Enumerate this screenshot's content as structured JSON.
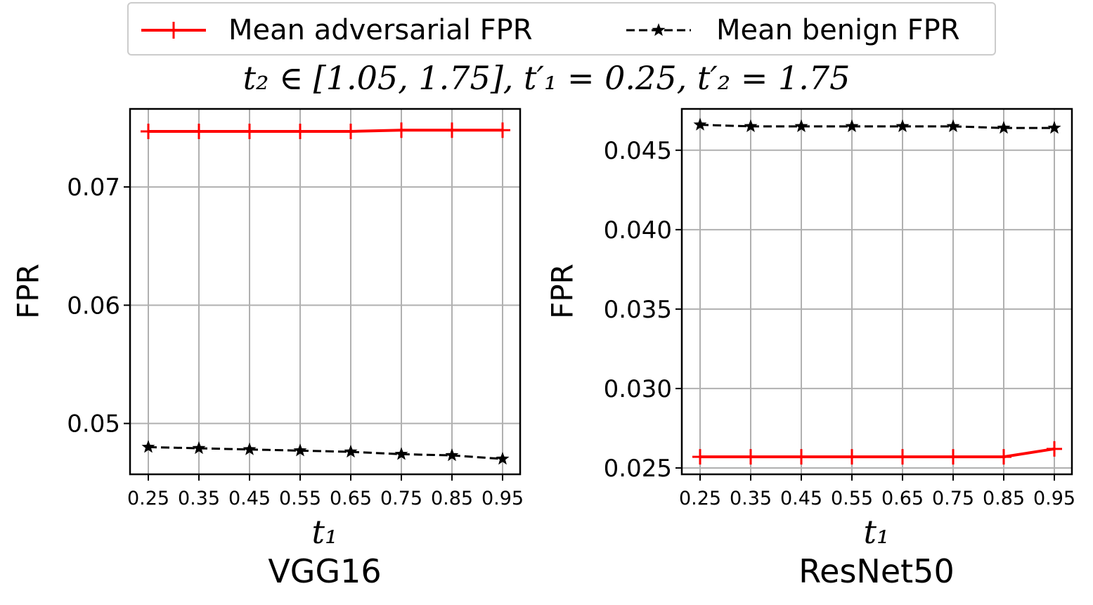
{
  "legend": {
    "series0": "Mean adversarial FPR",
    "series1": "Mean benign FPR"
  },
  "suptitle": "t₂ ∈ [1.05, 1.75], t′₁ = 0.25, t′₂ = 1.75",
  "colors": {
    "adversarial": "#ff0000",
    "benign": "#000000",
    "grid": "#b0b0b0"
  },
  "chart_data": [
    {
      "type": "line",
      "caption": "VGG16",
      "xlabel": "t₁",
      "ylabel": "FPR",
      "x": [
        0.25,
        0.35,
        0.45,
        0.55,
        0.65,
        0.75,
        0.85,
        0.95
      ],
      "x_tick_labels": [
        "0.25",
        "0.35",
        "0.45",
        "0.55",
        "0.65",
        "0.75",
        "0.85",
        "0.95"
      ],
      "y_ticks": [
        0.05,
        0.06,
        0.07
      ],
      "y_tick_labels": [
        "0.05",
        "0.06",
        "0.07"
      ],
      "ylim": [
        0.0457,
        0.0766
      ],
      "grid": true,
      "series": [
        {
          "name": "Mean adversarial FPR",
          "values": [
            0.0747,
            0.0747,
            0.0747,
            0.0747,
            0.0747,
            0.0748,
            0.0748,
            0.0748
          ]
        },
        {
          "name": "Mean benign FPR",
          "values": [
            0.048,
            0.0479,
            0.0478,
            0.0477,
            0.0476,
            0.0474,
            0.0473,
            0.047
          ]
        }
      ]
    },
    {
      "type": "line",
      "caption": "ResNet50",
      "xlabel": "t₁",
      "ylabel": "FPR",
      "x": [
        0.25,
        0.35,
        0.45,
        0.55,
        0.65,
        0.75,
        0.85,
        0.95
      ],
      "x_tick_labels": [
        "0.25",
        "0.35",
        "0.45",
        "0.55",
        "0.65",
        "0.75",
        "0.85",
        "0.95"
      ],
      "y_ticks": [
        0.025,
        0.03,
        0.035,
        0.04,
        0.045
      ],
      "y_tick_labels": [
        "0.025",
        "0.030",
        "0.035",
        "0.040",
        "0.045"
      ],
      "ylim": [
        0.0246,
        0.0476
      ],
      "grid": true,
      "series": [
        {
          "name": "Mean adversarial FPR",
          "values": [
            0.0257,
            0.0257,
            0.0257,
            0.0257,
            0.0257,
            0.0257,
            0.0257,
            0.0262
          ]
        },
        {
          "name": "Mean benign FPR",
          "values": [
            0.0466,
            0.0465,
            0.0465,
            0.0465,
            0.0465,
            0.0465,
            0.0464,
            0.0464
          ]
        }
      ]
    }
  ]
}
